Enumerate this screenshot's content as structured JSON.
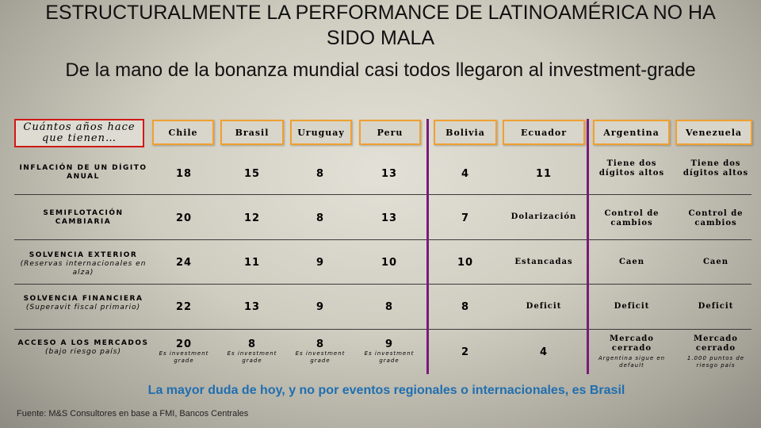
{
  "title": "ESTRUCTURALMENTE LA PERFORMANCE DE LATINOAMÉRICA NO HA SIDO MALA",
  "subtitle": "De la mano de la bonanza mundial casi todos llegaron al investment-grade",
  "question": "Cuántos años hace que tienen…",
  "countries": [
    "Chile",
    "Brasil",
    "Uruguay",
    "Peru",
    "Bolivia",
    "Ecuador",
    "Argentina",
    "Venezuela"
  ],
  "rows": [
    {
      "label": "INFLACIÓN DE UN DÍGITO ANUAL",
      "sub": "",
      "values": [
        "18",
        "15",
        "8",
        "13",
        "4",
        "11",
        "Tiene dos dígitos altos",
        "Tiene dos dígitos altos"
      ]
    },
    {
      "label": "SEMIFLOTACIÓN CAMBIARIA",
      "sub": "",
      "values": [
        "20",
        "12",
        "8",
        "13",
        "7",
        "Dolarización",
        "Control de cambios",
        "Control de cambios"
      ]
    },
    {
      "label": "SOLVENCIA EXTERIOR",
      "sub": "(Reservas internacionales en alza)",
      "values": [
        "24",
        "11",
        "9",
        "10",
        "10",
        "Estancadas",
        "Caen",
        "Caen"
      ]
    },
    {
      "label": "SOLVENCIA FINANCIERA",
      "sub": "(Superavit fiscal primario)",
      "values": [
        "22",
        "13",
        "9",
        "8",
        "8",
        "Deficit",
        "Deficit",
        "Deficit"
      ]
    },
    {
      "label": "ACCESO A LOS MERCADOS",
      "sub": "(bajo riesgo país)",
      "values": [
        "20",
        "8",
        "8",
        "9",
        "2",
        "4",
        "Mercado cerrado",
        "Mercado cerrado"
      ],
      "notes": [
        "Es investment grade",
        "Es investment grade",
        "Es investment grade",
        "Es investment grade",
        "",
        "",
        "Argentina sigue en default",
        "1.000 puntos de riesgo país"
      ]
    }
  ],
  "conclusion": "La mayor duda de hoy, y no por eventos regionales o internacionales, es Brasil",
  "source": "Fuente: M&S Consultores en base a FMI, Bancos Centrales",
  "colors": {
    "header_border": "#f0a030",
    "question_border": "#d01818",
    "divider": "#7a1a7a",
    "conclusion": "#1f6fb0"
  }
}
